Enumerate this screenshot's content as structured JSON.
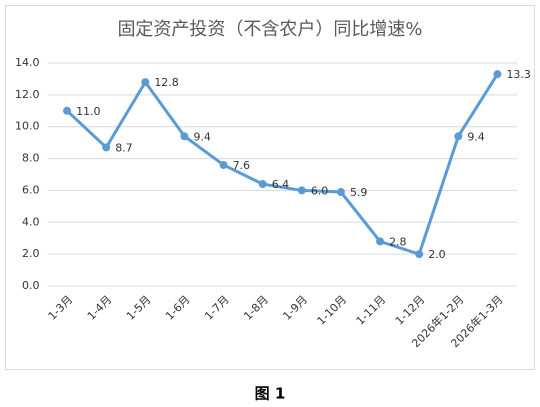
{
  "chart_data": {
    "type": "line",
    "title": "固定资产投资（不含农户）同比增速%",
    "categories": [
      "1-3月",
      "1-4月",
      "1-5月",
      "1-6月",
      "1-7月",
      "1-8月",
      "1-9月",
      "1-10月",
      "1-11月",
      "1-12月",
      "2026年1-2月",
      "2026年1-3月"
    ],
    "values": [
      11.0,
      8.7,
      12.8,
      9.4,
      7.6,
      6.4,
      6.0,
      5.9,
      2.8,
      2.0,
      9.4,
      13.3
    ],
    "value_labels": [
      "11.0",
      "8.7",
      "12.8",
      "9.4",
      "7.6",
      "6.4",
      "6.0",
      "5.9",
      "2.8",
      "2.0",
      "9.4",
      "13.3"
    ],
    "color": "#5b9bd5",
    "ylim": [
      0,
      14
    ],
    "yticks": [
      {
        "value": 0,
        "label": "0.0"
      },
      {
        "value": 2,
        "label": "2.0"
      },
      {
        "value": 4,
        "label": "4.0"
      },
      {
        "value": 6,
        "label": "6.0"
      },
      {
        "value": 8,
        "label": "8.0"
      },
      {
        "value": 10,
        "label": "10.0"
      },
      {
        "value": 12,
        "label": "12.0"
      },
      {
        "value": 14,
        "label": "14.0"
      }
    ],
    "grid": true
  },
  "caption": "图 1"
}
